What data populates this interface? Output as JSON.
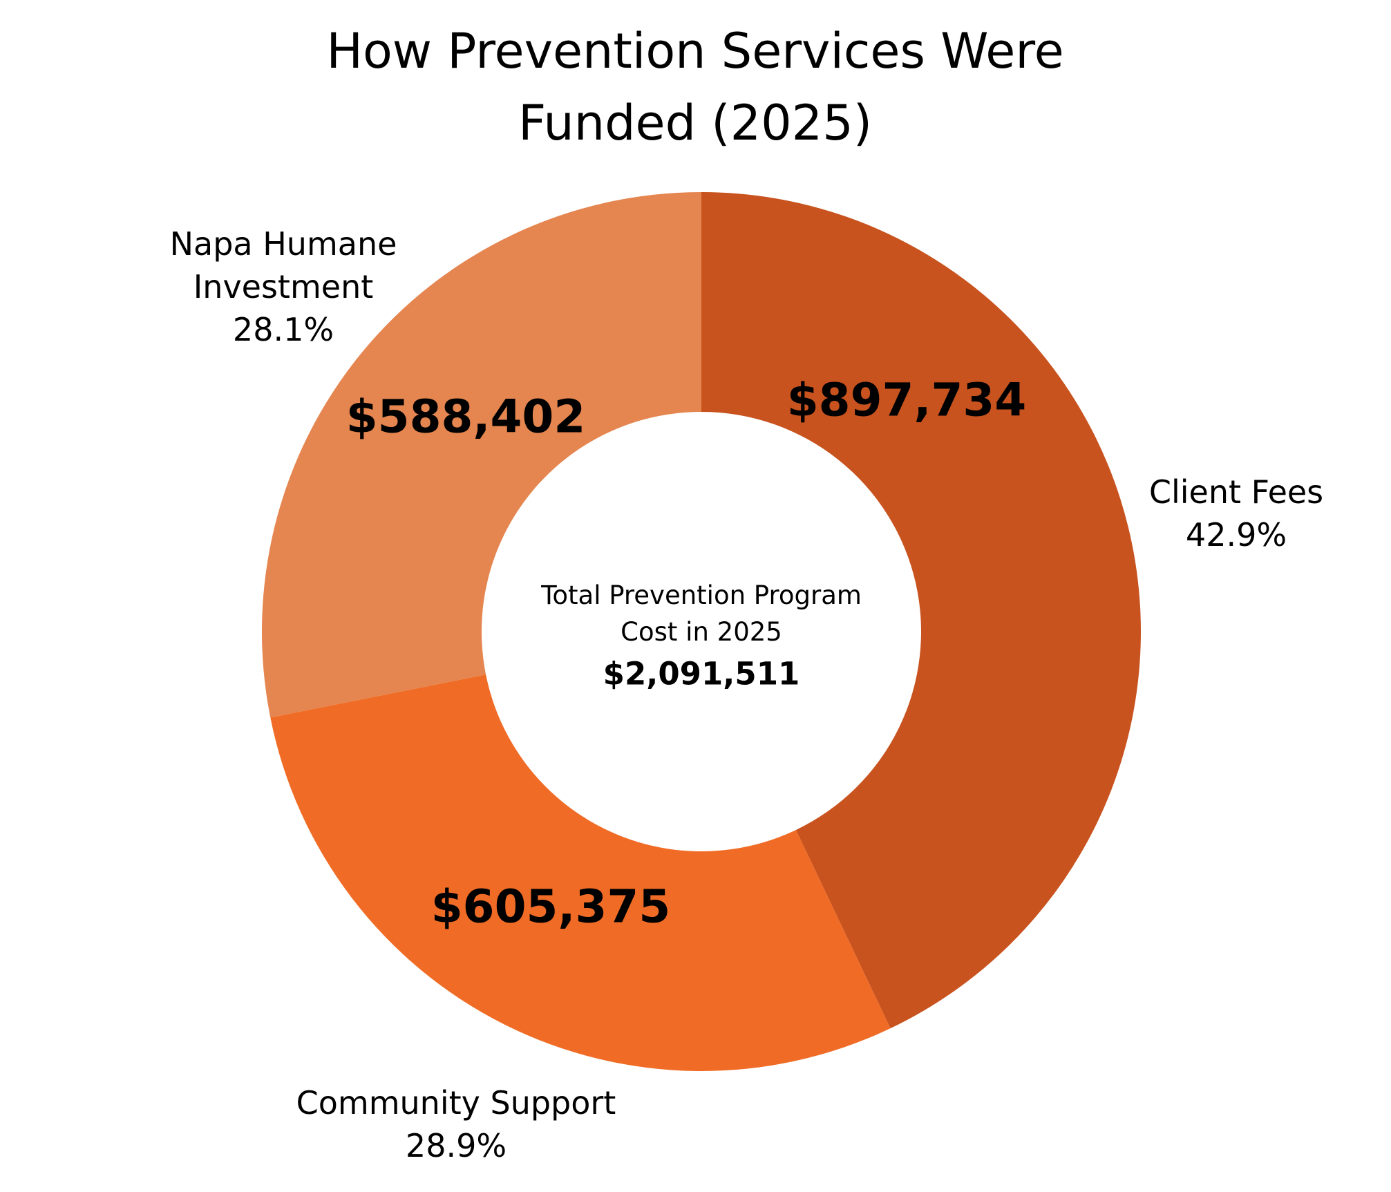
{
  "chart_data": {
    "type": "donut",
    "title": "How Prevention Services Were Funded (2025)",
    "categories": [
      "Client Fees",
      "Community Support",
      "Napa Humane Investment"
    ],
    "values": [
      897734,
      605375,
      588402
    ],
    "value_labels": [
      "$897,734",
      "$605,375",
      "$588,402"
    ],
    "percents": [
      42.9,
      28.9,
      28.1
    ],
    "percent_labels": [
      "42.9%",
      "28.9%",
      "28.1%"
    ],
    "colors": [
      "#c8531e",
      "#f06c26",
      "#e5854f"
    ],
    "center_label": "Total Prevention Program Cost in 2025",
    "total": 2091511,
    "total_label": "$2,091,511"
  }
}
